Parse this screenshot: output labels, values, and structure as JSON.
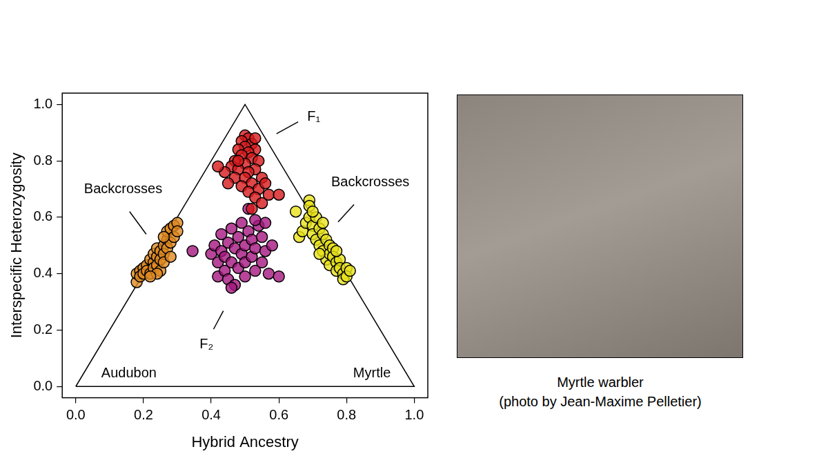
{
  "chart_data": {
    "type": "scatter",
    "xlabel": "Hybrid Ancestry",
    "ylabel": "Interspecific Heterozygosity",
    "xlim": [
      -0.04,
      1.04
    ],
    "ylim": [
      -0.04,
      1.04
    ],
    "xticks": [
      {
        "value": 0,
        "label": "0.0"
      },
      0.2,
      0.4,
      0.6,
      0.8,
      {
        "value": 1,
        "label": "1.0"
      }
    ],
    "yticks": [
      {
        "value": 0,
        "label": "0.0"
      },
      0.2,
      0.4,
      0.6,
      0.8,
      {
        "value": 1,
        "label": "1.0"
      }
    ],
    "grid": false,
    "boundary": {
      "x": [
        0,
        0.5,
        1,
        0
      ],
      "y": [
        0,
        1,
        0,
        0
      ]
    },
    "vertex_labels": [
      {
        "text": "Audubon",
        "x": 0.157,
        "y": 0.045
      },
      {
        "text": "Myrtle",
        "x": 0.875,
        "y": 0.045
      }
    ],
    "series": [
      {
        "name": "Backcrosses",
        "color": "#e08a20",
        "marker": "circle",
        "label_at": [
          0.14,
          0.7
        ],
        "leader": [
          [
            0.159,
            0.62
          ],
          [
            0.208,
            0.54
          ]
        ],
        "x": [
          0.18,
          0.18,
          0.19,
          0.19,
          0.2,
          0.2,
          0.21,
          0.21,
          0.22,
          0.22,
          0.23,
          0.23,
          0.23,
          0.24,
          0.24,
          0.24,
          0.25,
          0.25,
          0.25,
          0.26,
          0.26,
          0.26,
          0.27,
          0.27,
          0.27,
          0.28,
          0.28,
          0.28,
          0.29,
          0.29,
          0.3,
          0.3,
          0.26,
          0.24,
          0.22
        ],
        "y": [
          0.37,
          0.4,
          0.41,
          0.39,
          0.42,
          0.4,
          0.43,
          0.41,
          0.4,
          0.45,
          0.44,
          0.42,
          0.47,
          0.46,
          0.43,
          0.49,
          0.48,
          0.45,
          0.41,
          0.5,
          0.47,
          0.44,
          0.52,
          0.49,
          0.55,
          0.51,
          0.46,
          0.56,
          0.53,
          0.57,
          0.58,
          0.55,
          0.53,
          0.4,
          0.39
        ]
      },
      {
        "name": "F₁",
        "color": "#d7191c",
        "marker": "circle",
        "label_at": [
          0.703,
          0.955
        ],
        "leader": [
          [
            0.657,
            0.938
          ],
          [
            0.593,
            0.896
          ]
        ],
        "x": [
          0.5,
          0.51,
          0.49,
          0.52,
          0.5,
          0.48,
          0.53,
          0.51,
          0.49,
          0.47,
          0.52,
          0.54,
          0.5,
          0.46,
          0.48,
          0.53,
          0.51,
          0.44,
          0.42,
          0.47,
          0.5,
          0.55,
          0.52,
          0.49,
          0.54,
          0.56,
          0.51,
          0.53,
          0.55,
          0.57,
          0.6,
          0.52,
          0.45,
          0.48,
          0.53
        ],
        "y": [
          0.89,
          0.88,
          0.87,
          0.86,
          0.85,
          0.84,
          0.84,
          0.83,
          0.82,
          0.8,
          0.81,
          0.8,
          0.79,
          0.78,
          0.77,
          0.77,
          0.76,
          0.76,
          0.78,
          0.74,
          0.74,
          0.74,
          0.72,
          0.71,
          0.7,
          0.72,
          0.69,
          0.67,
          0.65,
          0.68,
          0.68,
          0.63,
          0.72,
          0.8,
          0.88
        ]
      },
      {
        "name": "F₂",
        "color": "#a5177f",
        "marker": "circle",
        "label_at": [
          0.386,
          0.149
        ],
        "leader": [
          [
            0.407,
            0.203
          ],
          [
            0.436,
            0.268
          ]
        ],
        "x": [
          0.345,
          0.4,
          0.41,
          0.42,
          0.42,
          0.43,
          0.43,
          0.44,
          0.44,
          0.45,
          0.45,
          0.46,
          0.46,
          0.47,
          0.47,
          0.48,
          0.48,
          0.49,
          0.49,
          0.5,
          0.5,
          0.5,
          0.51,
          0.51,
          0.52,
          0.52,
          0.53,
          0.53,
          0.54,
          0.55,
          0.55,
          0.56,
          0.56,
          0.57,
          0.58,
          0.6,
          0.46,
          0.53
        ],
        "y": [
          0.48,
          0.47,
          0.5,
          0.44,
          0.39,
          0.48,
          0.54,
          0.41,
          0.46,
          0.51,
          0.38,
          0.44,
          0.56,
          0.49,
          0.36,
          0.53,
          0.42,
          0.47,
          0.58,
          0.5,
          0.44,
          0.39,
          0.55,
          0.63,
          0.46,
          0.52,
          0.41,
          0.49,
          0.57,
          0.44,
          0.53,
          0.48,
          0.58,
          0.4,
          0.5,
          0.39,
          0.35,
          0.59
        ]
      },
      {
        "name": "Backcrosses",
        "color": "#e8e21a",
        "marker": "circle",
        "label_at": [
          0.87,
          0.724
        ],
        "leader": [
          [
            0.822,
            0.645
          ],
          [
            0.775,
            0.583
          ]
        ],
        "x": [
          0.65,
          0.66,
          0.67,
          0.68,
          0.69,
          0.69,
          0.69,
          0.7,
          0.7,
          0.71,
          0.71,
          0.72,
          0.72,
          0.73,
          0.73,
          0.73,
          0.74,
          0.74,
          0.75,
          0.75,
          0.75,
          0.76,
          0.76,
          0.77,
          0.77,
          0.78,
          0.78,
          0.79,
          0.79,
          0.8,
          0.8,
          0.81,
          0.7,
          0.72,
          0.77
        ],
        "y": [
          0.62,
          0.53,
          0.55,
          0.58,
          0.66,
          0.64,
          0.6,
          0.57,
          0.54,
          0.6,
          0.52,
          0.56,
          0.5,
          0.54,
          0.58,
          0.48,
          0.52,
          0.45,
          0.5,
          0.47,
          0.43,
          0.49,
          0.46,
          0.44,
          0.41,
          0.45,
          0.42,
          0.4,
          0.38,
          0.42,
          0.39,
          0.41,
          0.62,
          0.47,
          0.48
        ]
      }
    ]
  },
  "photo_panel": {
    "caption": [
      "Myrtle warbler",
      "(photo by Jean-Maxime Pelletier)"
    ]
  }
}
